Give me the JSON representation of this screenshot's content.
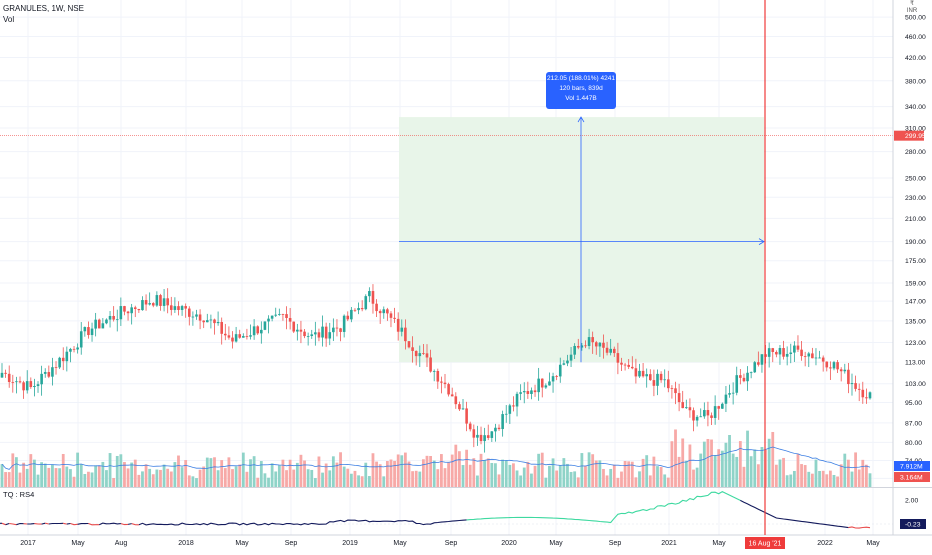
{
  "header": {
    "symbol_line": "GRANULES, 1W, NSE",
    "volume_label": "Vol"
  },
  "currency": {
    "line1": "₹ ",
    "line2": "INR"
  },
  "price_axis": {
    "ticks": [
      "500.00",
      "460.00",
      "420.00",
      "380.00",
      "340.00",
      "310.00",
      "280.00",
      "250.00",
      "230.00",
      "210.00",
      "190.00",
      "175.00",
      "159.00",
      "147.00",
      "135.00",
      "123.00",
      "113.00",
      "103.00",
      "95.00",
      "87.00",
      "80.00",
      "74.00",
      "68.50"
    ],
    "last_price_label": "299.95",
    "volume_label_1": "7.912M",
    "volume_label_2": "3.164M"
  },
  "indicator": {
    "title": "TQ : RS4",
    "ticks": [
      "2.00",
      "0.00"
    ],
    "last_value_label": "-0.23"
  },
  "time_axis": {
    "labels": [
      "2017",
      "May",
      "Aug",
      "2018",
      "May",
      "Sep",
      "2019",
      "May",
      "Sep",
      "2020",
      "May",
      "Sep",
      "2021",
      "May",
      "2022",
      "May"
    ],
    "highlight_label": "16 Aug '21"
  },
  "measure_tool": {
    "line1": "212.05 (188.01%) 4241",
    "line2": "120 bars, 839d",
    "line3": "Vol 1.447B"
  },
  "colors": {
    "up": "#26a69a",
    "down": "#ef5350",
    "volume_up": "#8fd3c8",
    "volume_down": "#f7a9a7",
    "volume_ma": "#3d7fe3",
    "measure_fill": "#e8f5e9",
    "measure_line": "#2962ff",
    "crosshair": "#ef3b3b",
    "indicator_line": "#131a5c",
    "indicator_up": "#3ed9a0",
    "indicator_down": "#e84a4a",
    "label_blue": "#2962ff"
  },
  "chart_data": {
    "type": "candlestick",
    "title": "GRANULES, 1W, NSE",
    "y_scale": "log",
    "ylim": [
      66,
      520
    ],
    "price_path_anchors": [
      [
        0,
        108
      ],
      [
        8,
        101
      ],
      [
        16,
        114
      ],
      [
        24,
        130
      ],
      [
        34,
        141
      ],
      [
        42,
        148
      ],
      [
        48,
        143
      ],
      [
        56,
        138
      ],
      [
        64,
        124
      ],
      [
        70,
        130
      ],
      [
        78,
        137
      ],
      [
        86,
        126
      ],
      [
        94,
        132
      ],
      [
        102,
        150
      ],
      [
        110,
        131
      ],
      [
        118,
        113
      ],
      [
        124,
        101
      ],
      [
        132,
        82
      ],
      [
        136,
        84
      ],
      [
        144,
        98
      ],
      [
        152,
        106
      ],
      [
        162,
        124
      ],
      [
        168,
        118
      ],
      [
        176,
        106
      ],
      [
        184,
        104
      ],
      [
        190,
        91
      ],
      [
        196,
        89
      ],
      [
        204,
        104
      ],
      [
        212,
        117
      ],
      [
        222,
        119
      ],
      [
        230,
        113
      ],
      [
        238,
        101
      ],
      [
        246,
        93
      ],
      [
        252,
        86
      ],
      [
        258,
        89
      ],
      [
        266,
        107
      ],
      [
        274,
        115
      ],
      [
        280,
        118
      ],
      [
        288,
        124
      ],
      [
        294,
        128
      ],
      [
        300,
        141
      ],
      [
        306,
        152
      ],
      [
        310,
        173
      ],
      [
        314,
        176
      ],
      [
        318,
        155
      ],
      [
        320,
        124
      ],
      [
        322,
        145
      ],
      [
        326,
        158
      ],
      [
        330,
        171
      ],
      [
        334,
        182
      ],
      [
        338,
        214
      ],
      [
        342,
        236
      ],
      [
        346,
        251
      ],
      [
        350,
        281
      ],
      [
        354,
        311
      ],
      [
        358,
        336
      ],
      [
        362,
        366
      ],
      [
        366,
        381
      ],
      [
        370,
        387
      ],
      [
        374,
        392
      ],
      [
        380,
        373
      ],
      [
        384,
        358
      ],
      [
        390,
        341
      ],
      [
        396,
        329
      ],
      [
        402,
        315
      ],
      [
        408,
        336
      ],
      [
        412,
        325
      ],
      [
        418,
        316
      ],
      [
        422,
        341
      ],
      [
        426,
        375
      ],
      [
        430,
        372
      ],
      [
        436,
        341
      ],
      [
        444,
        331
      ],
      [
        450,
        322
      ],
      [
        456,
        301
      ],
      [
        462,
        309
      ],
      [
        468,
        316
      ],
      [
        472,
        303
      ],
      [
        478,
        294
      ],
      [
        484,
        300
      ]
    ],
    "last_price": 299.95,
    "volume_labels": [
      "7.912M",
      "3.164M"
    ],
    "indicator": {
      "name": "TQ : RS4",
      "last_value": -0.23,
      "ticks": [
        2.0,
        0.0
      ]
    },
    "measurement": {
      "change": 212.05,
      "change_percent": 188.01,
      "bars": 120,
      "days": 839,
      "volume": "1.447B",
      "from_price": 113,
      "to_price": 325
    },
    "crosshair_date": "16 Aug '21"
  }
}
